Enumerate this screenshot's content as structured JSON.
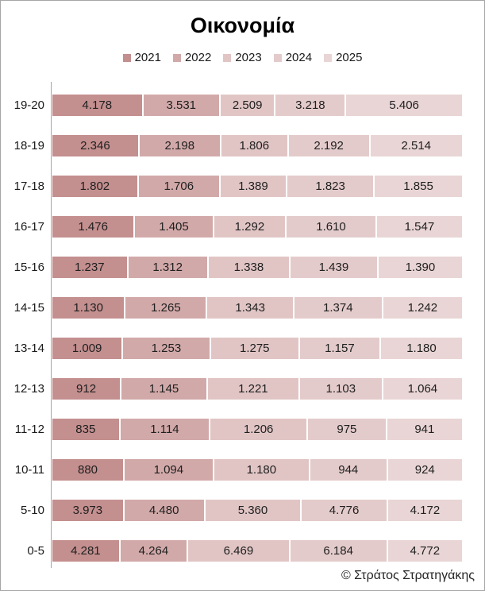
{
  "chart_data": {
    "type": "bar",
    "subtype": "stacked-100-horizontal",
    "title": "Οικονομία",
    "footer": "© Στράτος Στρατηγάκης",
    "legend_position": "top-center",
    "grid": false,
    "value_labels": "inside-center",
    "axis_line_color": "#A6A6A6",
    "border_color": "#A6A6A6",
    "categories": [
      "19-20",
      "18-19",
      "17-18",
      "16-17",
      "15-16",
      "14-15",
      "13-14",
      "12-13",
      "11-12",
      "10-11",
      "5-10",
      "0-5"
    ],
    "series": [
      {
        "name": "2021",
        "color": "#C48F8F",
        "values": [
          4178,
          2346,
          1802,
          1476,
          1237,
          1130,
          1009,
          912,
          835,
          880,
          3973,
          4281
        ],
        "labels": [
          "4.178",
          "2.346",
          "1.802",
          "1.476",
          "1.237",
          "1.130",
          "1.009",
          "912",
          "835",
          "880",
          "3.973",
          "4.281"
        ]
      },
      {
        "name": "2022",
        "color": "#D2A9A9",
        "values": [
          3531,
          2198,
          1706,
          1405,
          1312,
          1265,
          1253,
          1145,
          1114,
          1094,
          4480,
          4264
        ],
        "labels": [
          "3.531",
          "2.198",
          "1.706",
          "1.405",
          "1.312",
          "1.265",
          "1.253",
          "1.145",
          "1.114",
          "1.094",
          "4.480",
          "4.264"
        ]
      },
      {
        "name": "2023",
        "color": "#E1C5C5",
        "values": [
          2509,
          1806,
          1389,
          1292,
          1338,
          1343,
          1275,
          1221,
          1206,
          1180,
          5360,
          6469
        ],
        "labels": [
          "2.509",
          "1.806",
          "1.389",
          "1.292",
          "1.338",
          "1.343",
          "1.275",
          "1.221",
          "1.206",
          "1.180",
          "5.360",
          "6.469"
        ]
      },
      {
        "name": "2024",
        "color": "#E4CBCB",
        "values": [
          3218,
          2192,
          1823,
          1610,
          1439,
          1374,
          1157,
          1103,
          975,
          944,
          4776,
          6184
        ],
        "labels": [
          "3.218",
          "2.192",
          "1.823",
          "1.610",
          "1.439",
          "1.374",
          "1.157",
          "1.103",
          "975",
          "944",
          "4.776",
          "6.184"
        ]
      },
      {
        "name": "2025",
        "color": "#E9D5D5",
        "values": [
          5406,
          2514,
          1855,
          1547,
          1390,
          1242,
          1180,
          1064,
          941,
          924,
          4172,
          4772
        ],
        "labels": [
          "5.406",
          "2.514",
          "1.855",
          "1.547",
          "1.390",
          "1.242",
          "1.180",
          "1.064",
          "941",
          "924",
          "4.172",
          "4.772"
        ]
      }
    ]
  }
}
